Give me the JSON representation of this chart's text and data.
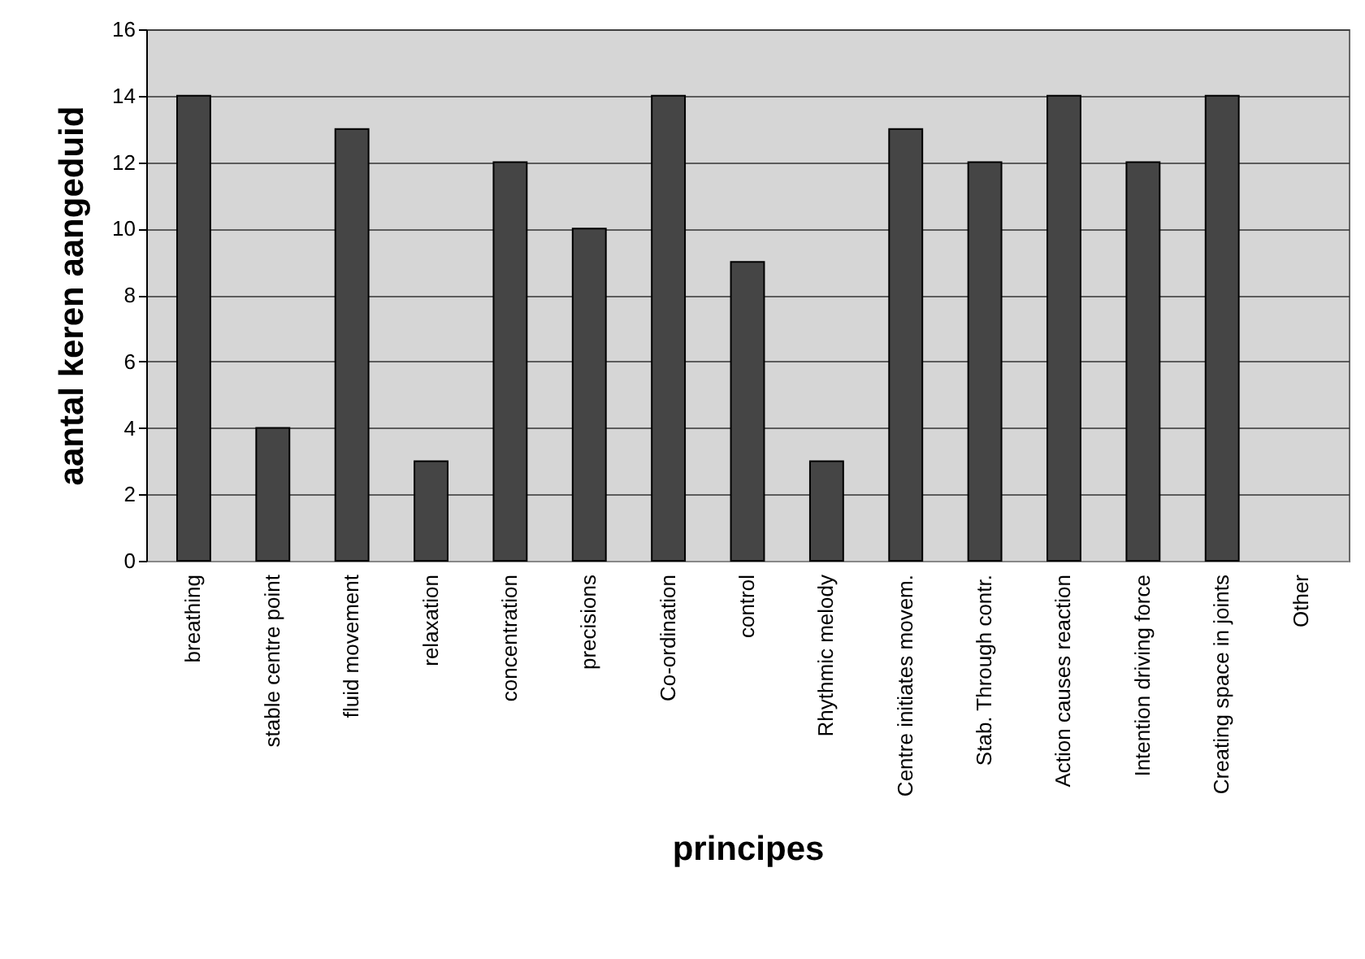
{
  "chart_data": {
    "type": "bar",
    "xlabel": "principes",
    "ylabel": "aantal keren aangeduid",
    "categories": [
      "breathing",
      "stable centre point",
      "fluid movement",
      "relaxation",
      "concentration",
      "precisions",
      "Co-ordination",
      "control",
      "Rhythmic melody",
      "Centre initiates movem.",
      "Stab. Through contr.",
      "Action causes reaction",
      "Intention driving force",
      "Creating space in joints",
      "Other"
    ],
    "values": [
      14,
      4,
      13,
      3,
      12,
      10,
      14,
      9,
      3,
      13,
      12,
      14,
      12,
      14,
      null
    ],
    "color": "#454545",
    "ylim": [
      0,
      16
    ],
    "yticks": [
      0,
      2,
      4,
      6,
      8,
      10,
      12,
      14,
      16
    ],
    "grid": "y"
  }
}
